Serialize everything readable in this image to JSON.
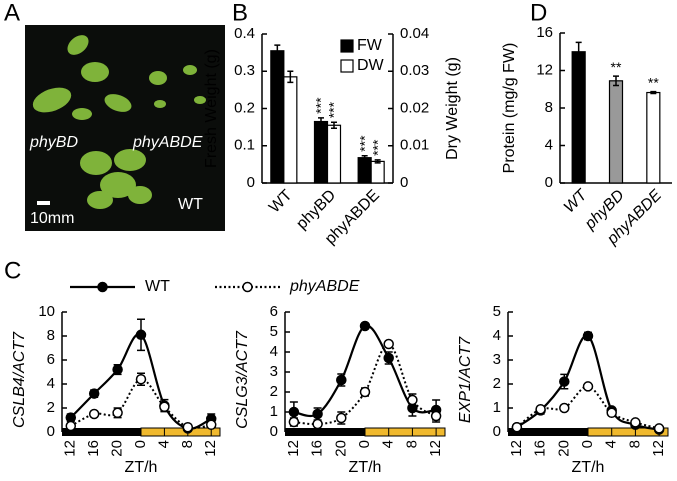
{
  "panel_a": {
    "panel": "A",
    "labels": [
      "phyBD",
      "phyABDE",
      "WT"
    ],
    "scale": "10mm"
  },
  "chart_data": [
    {
      "type": "bar",
      "panel": "B",
      "categories": [
        "WT",
        "phyBD",
        "phyABDE"
      ],
      "italic_categories": false,
      "y_label": "Fresh Weight (g)",
      "y2_label": "Dry Weight (g)",
      "ylim": [
        0,
        0.4
      ],
      "yticks": [
        0,
        0.1,
        0.2,
        0.3,
        0.4
      ],
      "y2lim": [
        0,
        0.04
      ],
      "y2ticks": [
        0,
        0.01,
        0.02,
        0.03,
        0.04
      ],
      "legend": "upper right",
      "series": [
        {
          "name": "FW",
          "color": "#000000",
          "values": [
            0.355,
            0.165,
            0.068
          ],
          "errors": [
            0.015,
            0.01,
            0.005
          ],
          "significance": [
            null,
            "***",
            "***"
          ]
        },
        {
          "name": "DW",
          "color": "#ffffff",
          "axis": "y2",
          "values": [
            0.0285,
            0.0155,
            0.0058
          ],
          "errors": [
            0.0015,
            0.0008,
            0.0004
          ],
          "significance": [
            null,
            "***",
            "***"
          ]
        }
      ]
    },
    {
      "type": "bar",
      "panel": "D",
      "categories": [
        "WT",
        "phyBD",
        "phyABDE"
      ],
      "italic_categories": true,
      "y_label": "Protein (mg/g FW)",
      "ylim": [
        0,
        16
      ],
      "yticks": [
        0,
        4,
        8,
        12,
        16
      ],
      "series": [
        {
          "colors": [
            "#000000",
            "#999999",
            "#ffffff"
          ],
          "values": [
            14,
            10.9,
            9.65
          ],
          "errors": [
            1,
            0.5,
            0.1
          ],
          "significance": [
            null,
            "**",
            "**"
          ]
        }
      ]
    },
    {
      "type": "line",
      "panel": "C",
      "y_label": "CSLB4/ACT7",
      "x_label": "ZT/h",
      "x": [
        -12,
        -8,
        -4,
        0,
        4,
        8,
        12
      ],
      "xlim": [
        -13.5,
        13.5
      ],
      "xticks": [
        {
          "value": -12,
          "label": "12"
        },
        {
          "value": -8,
          "label": "16"
        },
        {
          "value": -4,
          "label": "20"
        },
        0,
        4,
        8,
        12
      ],
      "ylim": [
        0,
        10
      ],
      "yticks": [
        0,
        2,
        4,
        6,
        8,
        10
      ],
      "series": [
        {
          "name": "WT",
          "color": "#000000",
          "marker": "filled",
          "dash": false,
          "values": [
            1.2,
            3.2,
            5.2,
            8.1,
            2.2,
            0.3,
            1.1
          ],
          "errors": [
            0.3,
            0.3,
            0.4,
            1.3,
            0.5,
            0.1,
            0.4
          ]
        },
        {
          "name": "phyABDE",
          "color": "#000000",
          "marker": "open",
          "dash": true,
          "values": [
            0.5,
            1.5,
            1.6,
            4.4,
            2.1,
            0.4,
            0.6
          ],
          "errors": [
            0.2,
            0.2,
            0.4,
            0.5,
            0.3,
            0.1,
            0.2
          ]
        }
      ]
    },
    {
      "type": "line",
      "y_label": "CSLG3/ACT7",
      "x_label": "ZT/h",
      "x": [
        -12,
        -8,
        -4,
        0,
        4,
        8,
        12
      ],
      "xlim": [
        -13.5,
        13.5
      ],
      "xticks": [
        {
          "value": -12,
          "label": "12"
        },
        {
          "value": -8,
          "label": "16"
        },
        {
          "value": -4,
          "label": "20"
        },
        0,
        4,
        8,
        12
      ],
      "ylim": [
        0,
        6
      ],
      "yticks": [
        0,
        1,
        2,
        3,
        4,
        5,
        6
      ],
      "series": [
        {
          "color": "#000000",
          "marker": "filled",
          "dash": false,
          "values": [
            1.0,
            0.9,
            2.6,
            5.3,
            3.7,
            1.2,
            1.1
          ],
          "errors": [
            0.5,
            0.3,
            0.3,
            0.1,
            0.3,
            0.4,
            0.5
          ]
        },
        {
          "color": "#000000",
          "marker": "open",
          "dash": true,
          "values": [
            0.5,
            0.4,
            0.7,
            2.0,
            4.4,
            1.6,
            0.8
          ],
          "errors": [
            0.2,
            0.1,
            0.3,
            0.2,
            0.1,
            0.3,
            0.3
          ]
        }
      ]
    },
    {
      "type": "line",
      "y_label": "EXP1/ACT7",
      "x_label": "ZT/h",
      "x": [
        -12,
        -8,
        -4,
        0,
        4,
        8,
        12
      ],
      "xlim": [
        -13.5,
        13.5
      ],
      "xticks": [
        {
          "value": -12,
          "label": "12"
        },
        {
          "value": -8,
          "label": "16"
        },
        {
          "value": -4,
          "label": "20"
        },
        0,
        4,
        8,
        12
      ],
      "ylim": [
        0,
        5
      ],
      "yticks": [
        0,
        1,
        2,
        3,
        4,
        5
      ],
      "series": [
        {
          "color": "#000000",
          "marker": "filled",
          "dash": false,
          "values": [
            0.2,
            0.9,
            2.1,
            4.0,
            0.9,
            0.3,
            0.1
          ],
          "errors": [
            0.05,
            0.15,
            0.3,
            0.15,
            0.1,
            0.05,
            0.05
          ]
        },
        {
          "color": "#000000",
          "marker": "open",
          "dash": true,
          "values": [
            0.2,
            0.95,
            1.0,
            1.9,
            0.8,
            0.4,
            0.15
          ],
          "errors": [
            0.05,
            0.1,
            0.1,
            0.1,
            0.1,
            0.05,
            0.05
          ]
        }
      ]
    }
  ]
}
